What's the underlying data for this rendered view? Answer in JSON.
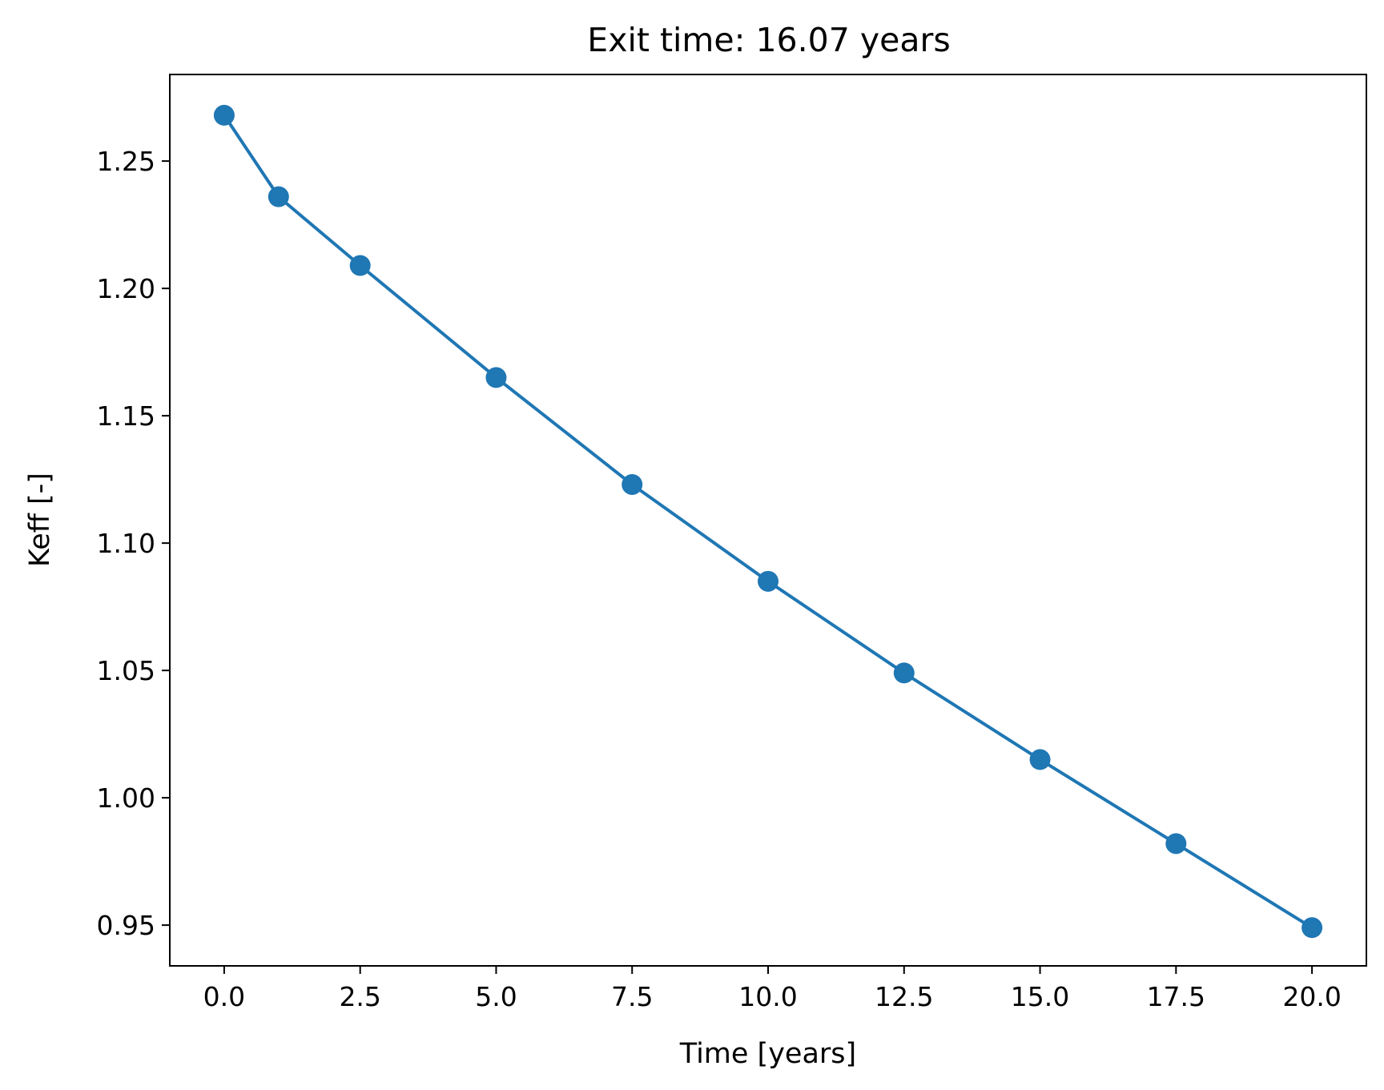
{
  "chart_data": {
    "type": "line",
    "title": "Exit time: 16.07 years",
    "xlabel": "Time [years]",
    "ylabel": "Keff [-]",
    "xlim": [
      -1.0,
      21.0
    ],
    "ylim": [
      0.934,
      1.284
    ],
    "xticks": [
      0.0,
      2.5,
      5.0,
      7.5,
      10.0,
      12.5,
      15.0,
      17.5,
      20.0
    ],
    "xtick_labels": [
      "0.0",
      "2.5",
      "5.0",
      "7.5",
      "10.0",
      "12.5",
      "15.0",
      "17.5",
      "20.0"
    ],
    "yticks": [
      0.95,
      1.0,
      1.05,
      1.1,
      1.15,
      1.2,
      1.25
    ],
    "ytick_labels": [
      "0.95",
      "1.00",
      "1.05",
      "1.10",
      "1.15",
      "1.20",
      "1.25"
    ],
    "grid": false,
    "legend": false,
    "series": [
      {
        "color": "#1f77b4",
        "marker": "circle",
        "x": [
          0.0,
          1.0,
          2.5,
          5.0,
          7.5,
          10.0,
          12.5,
          15.0,
          17.5,
          20.0
        ],
        "y": [
          1.268,
          1.236,
          1.209,
          1.165,
          1.123,
          1.085,
          1.049,
          1.015,
          0.982,
          0.949
        ]
      }
    ]
  }
}
